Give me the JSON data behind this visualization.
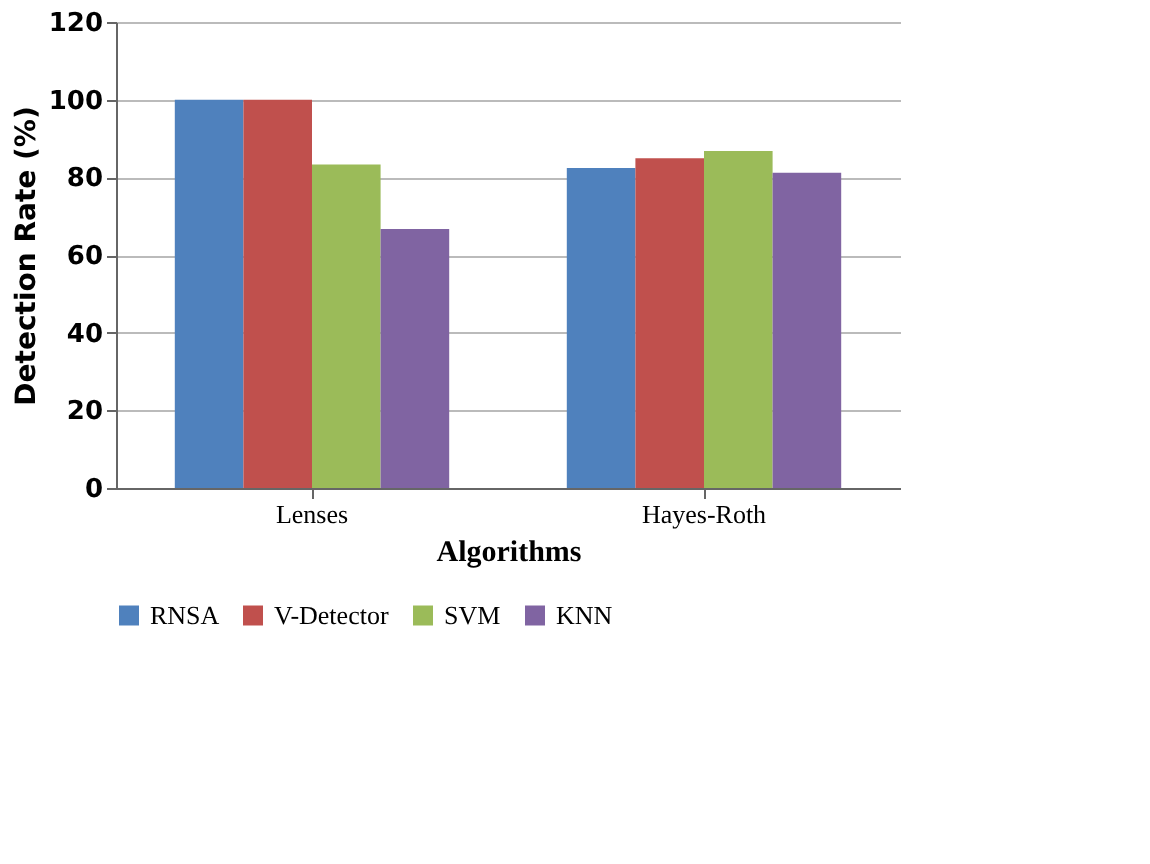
{
  "chart_data": {
    "type": "bar",
    "xlabel": "Algorithms",
    "ylabel": "Detection Rate (%)",
    "categories": [
      "Lenses",
      "Hayes-Roth"
    ],
    "series": [
      {
        "name": "RNSA",
        "color": "#4f81bd",
        "values": [
          100,
          82.4
        ]
      },
      {
        "name": "V-Detector",
        "color": "#c0504d",
        "values": [
          100,
          84.9
        ]
      },
      {
        "name": "SVM",
        "color": "#9bbb59",
        "values": [
          83.3,
          86.8
        ]
      },
      {
        "name": "KNN",
        "color": "#8064a2",
        "values": [
          66.7,
          81.2
        ]
      }
    ],
    "ylim": [
      0,
      120
    ],
    "yticks": [
      0,
      20,
      40,
      60,
      80,
      100,
      120
    ],
    "grid": "y",
    "legend": "bottom"
  }
}
